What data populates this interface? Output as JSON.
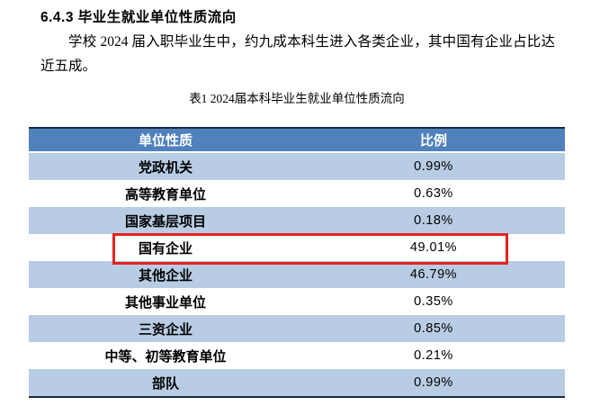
{
  "page": {
    "heading": "6.4.3 毕业生就业单位性质流向",
    "paragraph": "学校 2024 届入职毕业生中，约九成本科生进入各类企业，其中国有企业占比达近五成。",
    "table_caption": "表1 2024届本科毕业生就业单位性质流向"
  },
  "table": {
    "columns": [
      "单位性质",
      "比例"
    ],
    "rows": [
      {
        "label": "党政机关",
        "value": "0.99%"
      },
      {
        "label": "高等教育单位",
        "value": "0.63%"
      },
      {
        "label": "国家基层项目",
        "value": "0.18%"
      },
      {
        "label": "国有企业",
        "value": "49.01%",
        "highlighted": true
      },
      {
        "label": "其他企业",
        "value": "46.79%"
      },
      {
        "label": "其他事业单位",
        "value": "0.35%"
      },
      {
        "label": "三资企业",
        "value": "0.85%"
      },
      {
        "label": "中等、初等教育单位",
        "value": "0.21%"
      },
      {
        "label": "部队",
        "value": "0.99%"
      }
    ],
    "highlighted_row_label": "国有企业",
    "colors": {
      "header_bg": "#4f81bd",
      "header_text": "#ffffff",
      "band_bg": "#b8cce4",
      "border_dark": "#1c2a3a",
      "highlight_border": "#e2251f"
    }
  }
}
